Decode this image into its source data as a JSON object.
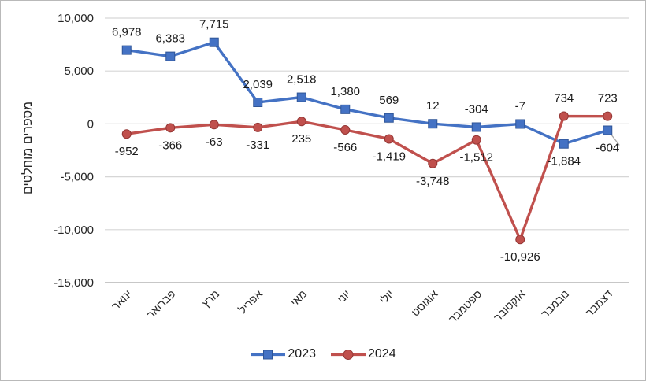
{
  "chart_data": {
    "type": "line",
    "title": "",
    "xlabel": "",
    "ylabel": "מספרים מוחלטים",
    "categories": [
      "ינואר",
      "פברואר",
      "מרץ",
      "אפריל",
      "מאי",
      "יוני",
      "יולי",
      "אוגוסט",
      "ספטמבר",
      "אוקטובר",
      "נובמבר",
      "דצמבר"
    ],
    "series": [
      {
        "name": "2023",
        "color": "#4472C4",
        "marker_border": "#2F5597",
        "marker": "square",
        "values": [
          6978,
          6383,
          7715,
          2039,
          2518,
          1380,
          569,
          12,
          -304,
          -7,
          -1884,
          -604
        ],
        "label_side": [
          "above",
          "above",
          "above",
          "above",
          "above",
          "above",
          "above",
          "above",
          "above",
          "above",
          "below",
          "below"
        ]
      },
      {
        "name": "2024",
        "color": "#C0504D",
        "marker_border": "#943634",
        "marker": "circle",
        "values": [
          -952,
          -366,
          -63,
          -331,
          235,
          -566,
          -1419,
          -3748,
          -1512,
          -10926,
          734,
          723
        ],
        "label_side": [
          "below",
          "below",
          "below",
          "below",
          "below",
          "below",
          "below",
          "below",
          "below",
          "below",
          "above",
          "above"
        ]
      }
    ],
    "ylim": [
      -15000,
      10000
    ],
    "ytick_step": 5000,
    "grid": true,
    "gridline_color": "#D6D6D6",
    "axis_line_color": "#BFBFBF",
    "legend_position": "bottom",
    "annotations": [
      {
        "type": "label-leader",
        "series": "2023",
        "point_index": 11
      }
    ]
  }
}
